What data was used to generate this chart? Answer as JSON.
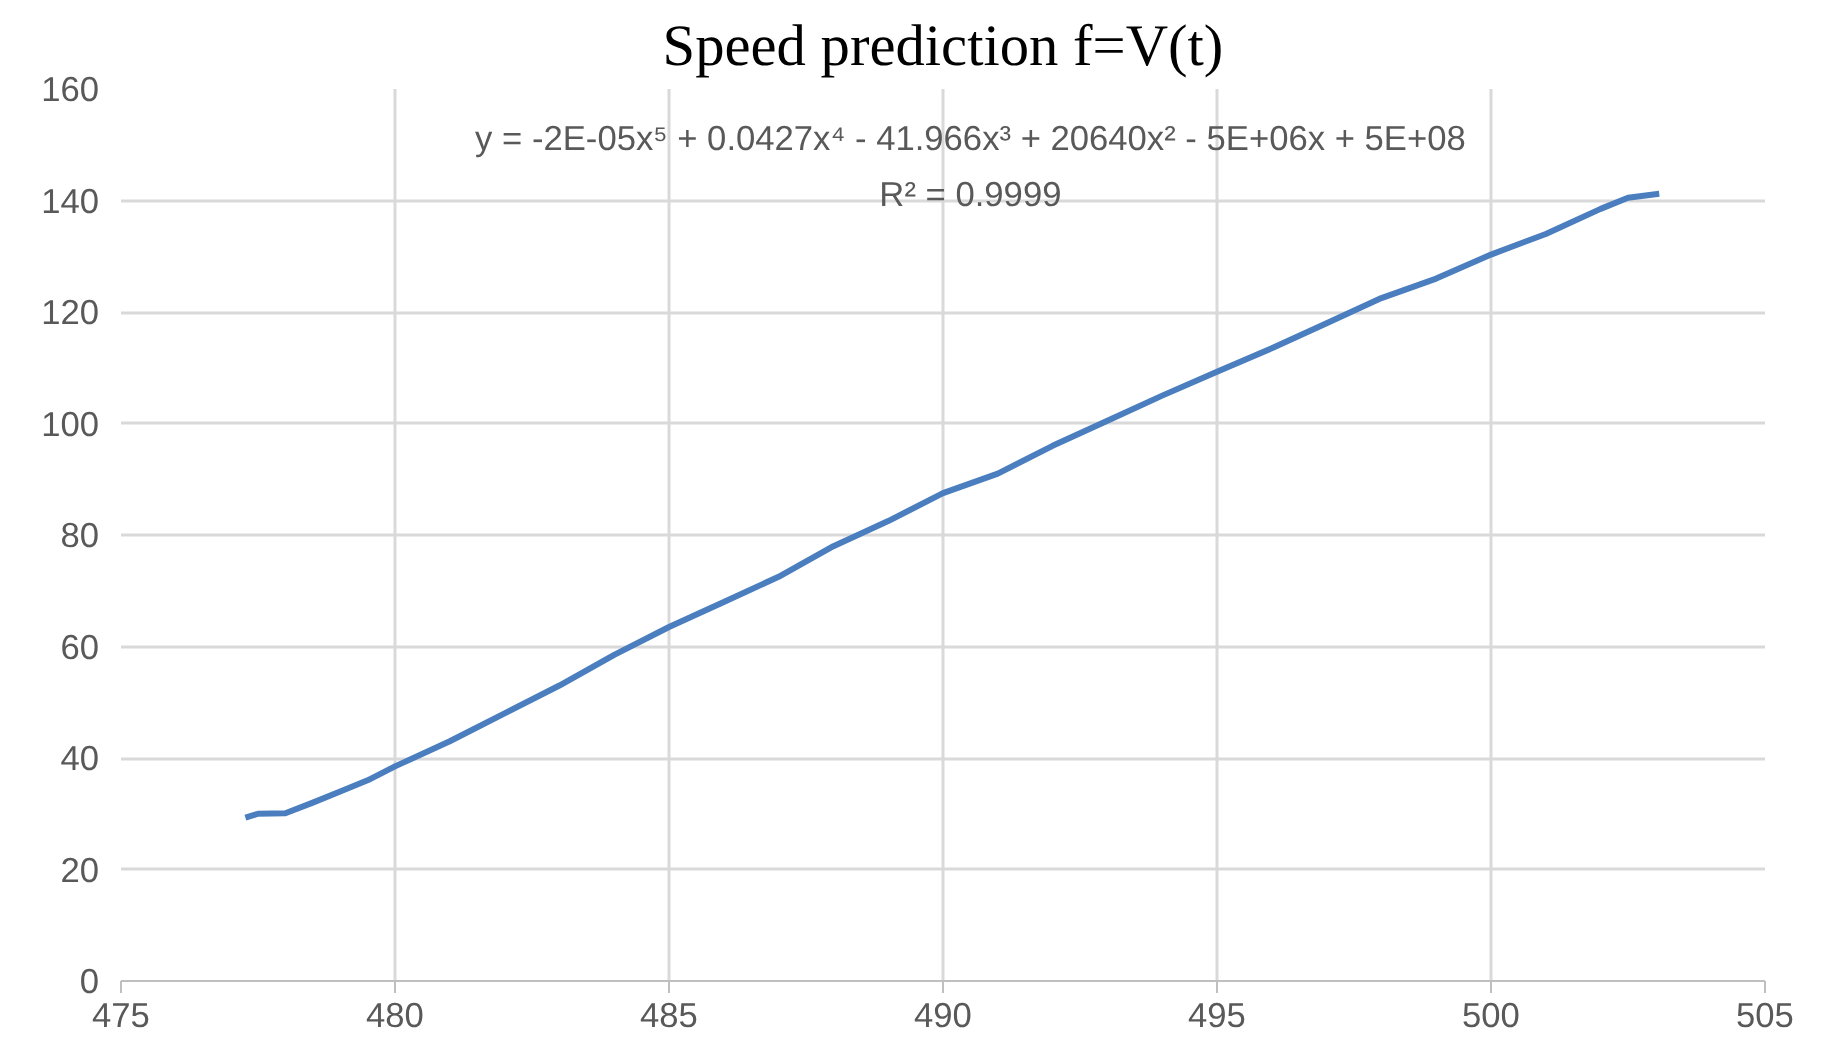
{
  "chart_data": {
    "type": "line",
    "title": "Speed prediction f=V(t)",
    "x": [
      477.27,
      477.5,
      478.0,
      478.5,
      479.0,
      479.5,
      480.0,
      481.0,
      482.0,
      483.0,
      484.0,
      485.0,
      486.0,
      487.0,
      488.0,
      489.0,
      490.0,
      491.0,
      492.0,
      493.0,
      494.0,
      495.0,
      496.0,
      497.0,
      498.0,
      499.0,
      500.0,
      501.0,
      502.0,
      502.5,
      503.07
    ],
    "series": [
      {
        "color": "#4a7ebf",
        "values": [
          29.3,
          30.0,
          30.1,
          32,
          34,
          36,
          38.5,
          43,
          48,
          53,
          58.5,
          63.5,
          68,
          72.5,
          78,
          82.5,
          87.5,
          91,
          96,
          100.5,
          105,
          109.3,
          113.5,
          118,
          122.5,
          126,
          130.3,
          134,
          138.5,
          140.5,
          141.2
        ]
      }
    ],
    "xlim": [
      475,
      505
    ],
    "xticks": [
      475,
      480,
      485,
      490,
      495,
      500,
      505
    ],
    "ylim": [
      0,
      160
    ],
    "yticks": [
      0,
      20,
      40,
      60,
      80,
      100,
      120,
      140,
      160
    ],
    "grid": true,
    "marker": "none",
    "line_style": "solid",
    "annotations": [
      "y = -2E-05x⁵ + 0.0427x⁴ - 41.966x³ + 20640x² - 5E+06x + 5E+08",
      "R² = 0.9999"
    ]
  }
}
